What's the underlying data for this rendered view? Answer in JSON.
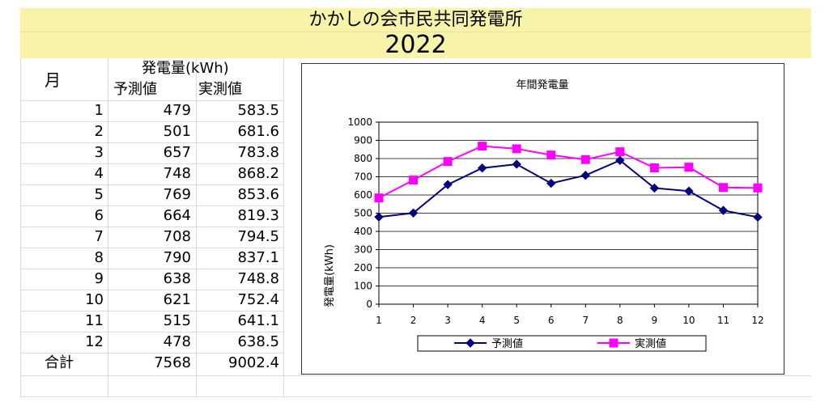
{
  "header": {
    "title": "かかしの会市民共同発電所",
    "year": "2022"
  },
  "table": {
    "month_header": "月",
    "group_header": "発電量(kWh)",
    "forecast_header": "予測値",
    "actual_header": "実測値",
    "rows": [
      {
        "month": "1",
        "forecast": "479",
        "actual": "583.5"
      },
      {
        "month": "2",
        "forecast": "501",
        "actual": "681.6"
      },
      {
        "month": "3",
        "forecast": "657",
        "actual": "783.8"
      },
      {
        "month": "4",
        "forecast": "748",
        "actual": "868.2"
      },
      {
        "month": "5",
        "forecast": "769",
        "actual": "853.6"
      },
      {
        "month": "6",
        "forecast": "664",
        "actual": "819.3"
      },
      {
        "month": "7",
        "forecast": "708",
        "actual": "794.5"
      },
      {
        "month": "8",
        "forecast": "790",
        "actual": "837.1"
      },
      {
        "month": "9",
        "forecast": "638",
        "actual": "748.8"
      },
      {
        "month": "10",
        "forecast": "621",
        "actual": "752.4"
      },
      {
        "month": "11",
        "forecast": "515",
        "actual": "641.1"
      },
      {
        "month": "12",
        "forecast": "478",
        "actual": "638.5"
      }
    ],
    "total_label": "合計",
    "total_forecast": "7568",
    "total_actual": "9002.4"
  },
  "chart_data": {
    "type": "line",
    "title": "年間発電量",
    "xlabel": "",
    "ylabel": "発電量(kWh)",
    "ylim": [
      0,
      1000
    ],
    "yticks": [
      0,
      100,
      200,
      300,
      400,
      500,
      600,
      700,
      800,
      900,
      1000
    ],
    "categories": [
      "1",
      "2",
      "3",
      "4",
      "5",
      "6",
      "7",
      "8",
      "9",
      "10",
      "11",
      "12"
    ],
    "grid": true,
    "legend_position": "bottom",
    "series": [
      {
        "name": "予測値",
        "color": "#000080",
        "marker": "diamond",
        "values": [
          479,
          501,
          657,
          748,
          769,
          664,
          708,
          790,
          638,
          621,
          515,
          478
        ]
      },
      {
        "name": "実測値",
        "color": "#ff00ff",
        "marker": "square",
        "values": [
          583.5,
          681.6,
          783.8,
          868.2,
          853.6,
          819.3,
          794.5,
          837.1,
          748.8,
          752.4,
          641.1,
          638.5
        ]
      }
    ]
  }
}
